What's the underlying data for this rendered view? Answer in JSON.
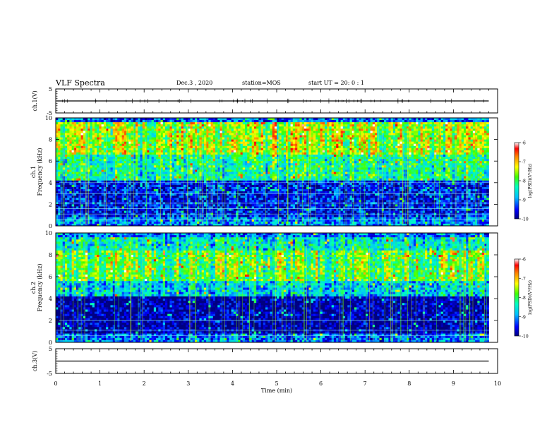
{
  "header": {
    "title": "VLF Spectra",
    "date": "Dec.3 , 2020",
    "station": "station=MOS",
    "start_ut": "start UT = 20: 0 : 1"
  },
  "chart_data": [
    {
      "type": "line",
      "name": "ch.1 waveform",
      "ylabel": "ch.1(V)",
      "xlabel": "",
      "ylim": [
        -5,
        5
      ],
      "yticks": [
        "5",
        "-5"
      ],
      "xlim": [
        0,
        10
      ],
      "trace_level": 0,
      "trace_end_min": 9.8
    },
    {
      "type": "heatmap",
      "name": "ch.1 spectrogram",
      "ylabel": "ch.1\nFrequency (kHz)",
      "ylim": [
        0,
        10
      ],
      "yticks": [
        "0",
        "2",
        "4",
        "6",
        "8",
        "10"
      ],
      "xlim": [
        0,
        10
      ],
      "data_end_min": 9.8,
      "colorbar": {
        "label": "log(PSD)(V²/Hz)",
        "range": [
          -10,
          -6
        ],
        "ticks": [
          "-6",
          "-7",
          "-8",
          "-9",
          "-10"
        ]
      },
      "description_bands_kHz": {
        "strong": [
          6.5,
          9.5
        ],
        "moderate": [
          4,
          6.5
        ],
        "weak": [
          0,
          4
        ]
      },
      "horizontal_lines_kHz": [
        0.6,
        1.1,
        1.6,
        2.1,
        3.0,
        4.0
      ]
    },
    {
      "type": "heatmap",
      "name": "ch.2 spectrogram",
      "ylabel": "ch.2\nFrequency (kHz)",
      "ylim": [
        0,
        10
      ],
      "yticks": [
        "0",
        "2",
        "4",
        "6",
        "8",
        "10"
      ],
      "xlim": [
        0,
        10
      ],
      "data_end_min": 9.8,
      "colorbar": {
        "label": "log(PSD)(V²/Hz)",
        "range": [
          -10,
          -6
        ],
        "ticks": [
          "-6",
          "-7",
          "-8",
          "-9",
          "-10"
        ]
      },
      "description_bands_kHz": {
        "strong": [
          5.5,
          8.5
        ],
        "moderate": [
          4,
          9.5
        ],
        "weak": [
          0,
          4
        ]
      },
      "horizontal_lines_kHz": [
        0.6,
        1.1,
        2.0
      ]
    },
    {
      "type": "line",
      "name": "ch.3 waveform",
      "ylabel": "ch.3(V)",
      "xlabel": "Time (min)",
      "ylim": [
        -5,
        5
      ],
      "yticks": [
        "5",
        "-5"
      ],
      "xlim": [
        0,
        10
      ],
      "xticks": [
        "0",
        "1",
        "2",
        "3",
        "4",
        "5",
        "6",
        "7",
        "8",
        "9",
        "10"
      ],
      "trace_level": 0,
      "trace_end_min": 9.8
    }
  ]
}
